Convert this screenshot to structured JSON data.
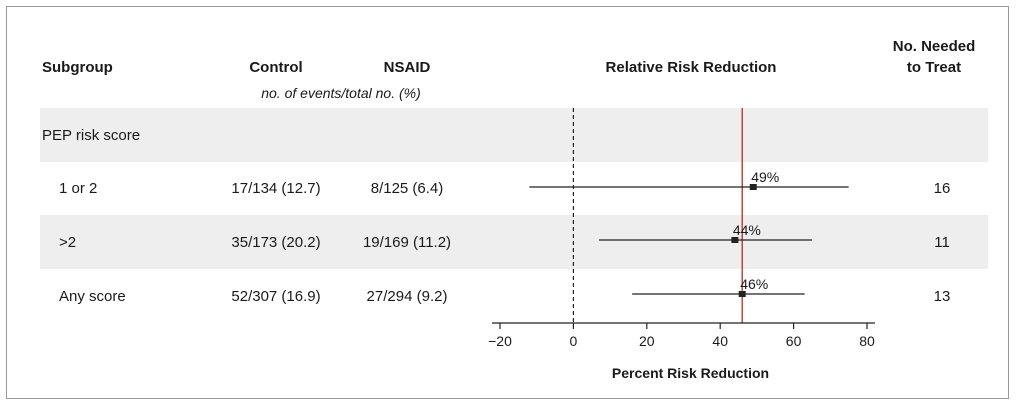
{
  "headers": {
    "subgroup": "Subgroup",
    "control": "Control",
    "nsaid": "NSAID",
    "events_note": "no. of events/total no. (%)",
    "rrr": "Relative Risk Reduction",
    "nnt_line1": "No. Needed",
    "nnt_line2": "to Treat"
  },
  "rows": [
    {
      "subgroup": "PEP risk score",
      "control": "",
      "nsaid": "",
      "nnt": "",
      "section": true
    },
    {
      "subgroup": "1 or 2",
      "control": "17/134 (12.7)",
      "nsaid": "8/125 (6.4)",
      "nnt": "16"
    },
    {
      "subgroup": ">2",
      "control": "35/173 (20.2)",
      "nsaid": "19/169 (11.2)",
      "nnt": "11"
    },
    {
      "subgroup": "Any score",
      "control": "52/307 (16.9)",
      "nsaid": "27/294 (9.2)",
      "nnt": "13"
    }
  ],
  "chart_data": {
    "type": "forest",
    "xlabel": "Percent Risk Reduction",
    "xlim": [
      -20,
      80
    ],
    "xticks": [
      -20,
      0,
      20,
      40,
      60,
      80
    ],
    "null_line": 0,
    "overall_line": 46,
    "overall_line_color": "#c0392b",
    "points": [
      {
        "row": 1,
        "estimate": 49,
        "lower": -12,
        "upper": 75,
        "label": "49%"
      },
      {
        "row": 2,
        "estimate": 44,
        "lower": 7,
        "upper": 65,
        "label": "44%"
      },
      {
        "row": 3,
        "estimate": 46,
        "lower": 16,
        "upper": 63,
        "label": "46%"
      }
    ]
  }
}
